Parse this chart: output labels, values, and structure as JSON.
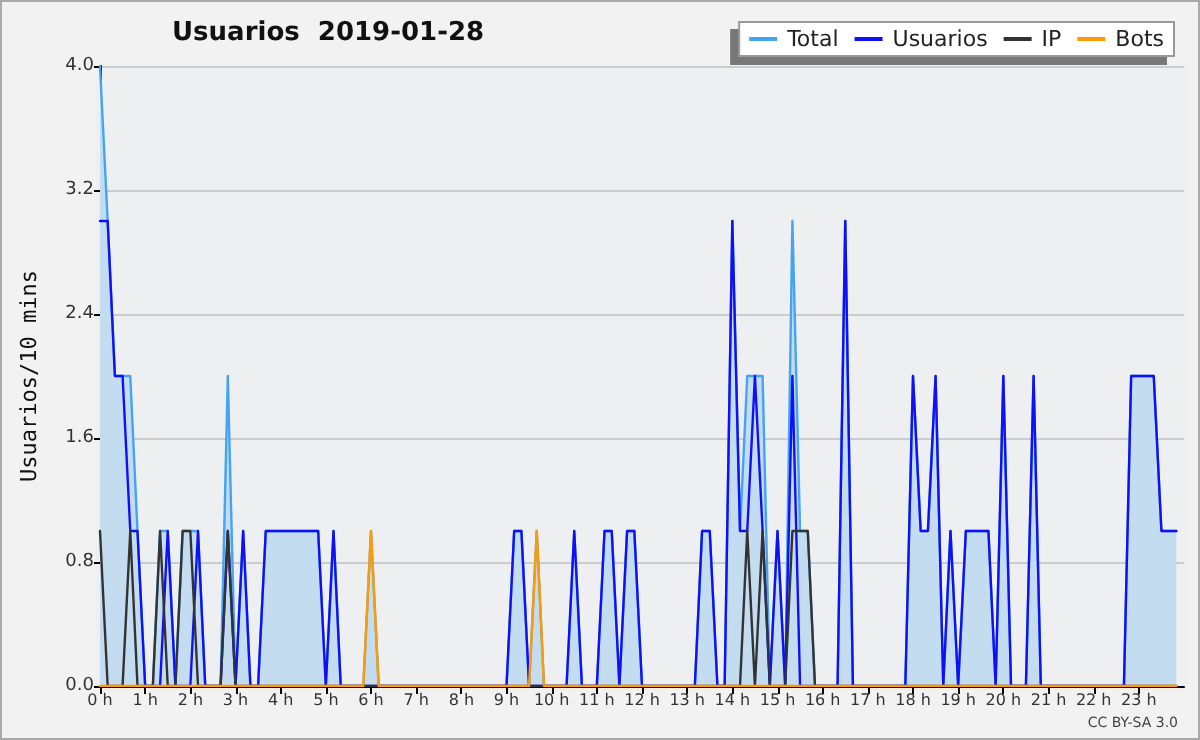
{
  "chart_data": {
    "type": "line",
    "title": "Usuarios  2019-01-28",
    "ylabel": "Usuarios/10 mins",
    "annotations": [
      "CC BY-SA 3.0"
    ],
    "x": [
      0,
      0.17,
      0.33,
      0.5,
      0.67,
      0.83,
      1,
      1.17,
      1.33,
      1.5,
      1.67,
      1.83,
      2,
      2.17,
      2.33,
      2.5,
      2.67,
      2.83,
      3,
      3.17,
      3.33,
      3.5,
      3.67,
      3.83,
      4,
      4.17,
      4.33,
      4.5,
      4.67,
      4.83,
      5,
      5.17,
      5.33,
      5.5,
      5.67,
      5.83,
      6,
      6.17,
      6.33,
      6.5,
      6.67,
      6.83,
      7,
      7.17,
      7.33,
      7.5,
      7.67,
      7.83,
      8,
      8.17,
      8.33,
      8.5,
      8.67,
      8.83,
      9,
      9.17,
      9.33,
      9.5,
      9.67,
      9.83,
      10,
      10.17,
      10.33,
      10.5,
      10.67,
      10.83,
      11,
      11.17,
      11.33,
      11.5,
      11.67,
      11.83,
      12,
      12.17,
      12.33,
      12.5,
      12.67,
      12.83,
      13,
      13.17,
      13.33,
      13.5,
      13.67,
      13.83,
      14,
      14.17,
      14.33,
      14.5,
      14.67,
      14.83,
      15,
      15.17,
      15.33,
      15.5,
      15.67,
      15.83,
      16,
      16.17,
      16.33,
      16.5,
      16.67,
      16.83,
      17,
      17.17,
      17.33,
      17.5,
      17.67,
      17.83,
      18,
      18.17,
      18.33,
      18.5,
      18.67,
      18.83,
      19,
      19.17,
      19.33,
      19.5,
      19.67,
      19.83,
      20,
      20.17,
      20.33,
      20.5,
      20.67,
      20.83,
      21,
      21.17,
      21.33,
      21.5,
      21.67,
      21.83,
      22,
      22.17,
      22.33,
      22.5,
      22.67,
      22.83,
      23,
      23.17,
      23.33,
      23.5,
      23.67,
      23.83
    ],
    "series": [
      {
        "name": "Total",
        "type": "area",
        "color": "#44a4f4",
        "values": [
          4,
          3,
          2,
          2,
          2,
          1,
          0,
          0,
          1,
          1,
          0,
          1,
          1,
          1,
          0,
          0,
          0,
          2,
          0,
          1,
          0,
          0,
          1,
          1,
          1,
          1,
          1,
          1,
          1,
          1,
          0,
          1,
          0,
          0,
          0,
          0,
          1,
          0,
          0,
          0,
          0,
          0,
          0,
          0,
          0,
          0,
          0,
          0,
          0,
          0,
          0,
          0,
          0,
          0,
          0,
          1,
          1,
          0,
          1,
          0,
          0,
          0,
          0,
          1,
          0,
          0,
          0,
          1,
          1,
          0,
          1,
          1,
          0,
          0,
          0,
          0,
          0,
          0,
          0,
          0,
          1,
          1,
          0,
          0,
          3,
          1,
          2,
          2,
          2,
          0,
          1,
          0,
          3,
          1,
          1,
          0,
          0,
          0,
          0,
          3,
          0,
          0,
          0,
          0,
          0,
          0,
          0,
          0,
          2,
          1,
          1,
          2,
          0,
          1,
          0,
          1,
          1,
          1,
          1,
          0,
          2,
          0,
          0,
          0,
          2,
          0,
          0,
          0,
          0,
          0,
          0,
          0,
          0,
          0,
          0,
          0,
          0,
          2,
          2,
          2,
          2,
          1,
          1,
          1
        ]
      },
      {
        "name": "Usuarios",
        "type": "line",
        "color": "#1010f8",
        "values": [
          3,
          3,
          2,
          2,
          1,
          1,
          0,
          0,
          0,
          1,
          0,
          0,
          0,
          1,
          0,
          0,
          0,
          1,
          0,
          1,
          0,
          0,
          1,
          1,
          1,
          1,
          1,
          1,
          1,
          1,
          0,
          1,
          0,
          0,
          0,
          0,
          0,
          0,
          0,
          0,
          0,
          0,
          0,
          0,
          0,
          0,
          0,
          0,
          0,
          0,
          0,
          0,
          0,
          0,
          0,
          1,
          1,
          0,
          0,
          0,
          0,
          0,
          0,
          1,
          0,
          0,
          0,
          1,
          1,
          0,
          1,
          1,
          0,
          0,
          0,
          0,
          0,
          0,
          0,
          0,
          1,
          1,
          0,
          0,
          3,
          1,
          1,
          2,
          1,
          0,
          1,
          0,
          2,
          0,
          0,
          0,
          0,
          0,
          0,
          3,
          0,
          0,
          0,
          0,
          0,
          0,
          0,
          0,
          2,
          1,
          1,
          2,
          0,
          1,
          0,
          1,
          1,
          1,
          1,
          0,
          2,
          0,
          0,
          0,
          2,
          0,
          0,
          0,
          0,
          0,
          0,
          0,
          0,
          0,
          0,
          0,
          0,
          2,
          2,
          2,
          2,
          1,
          1,
          1
        ]
      },
      {
        "name": "IP",
        "type": "line",
        "color": "#333333",
        "values": [
          1,
          0,
          0,
          0,
          1,
          0,
          0,
          0,
          1,
          0,
          0,
          1,
          1,
          0,
          0,
          0,
          0,
          1,
          0,
          0,
          0,
          0,
          0,
          0,
          0,
          0,
          0,
          0,
          0,
          0,
          0,
          0,
          0,
          0,
          0,
          0,
          0,
          0,
          0,
          0,
          0,
          0,
          0,
          0,
          0,
          0,
          0,
          0,
          0,
          0,
          0,
          0,
          0,
          0,
          0,
          0,
          0,
          0,
          0,
          0,
          0,
          0,
          0,
          0,
          0,
          0,
          0,
          0,
          0,
          0,
          0,
          0,
          0,
          0,
          0,
          0,
          0,
          0,
          0,
          0,
          0,
          0,
          0,
          0,
          0,
          0,
          1,
          0,
          1,
          0,
          0,
          0,
          1,
          1,
          1,
          0,
          0,
          0,
          0,
          0,
          0,
          0,
          0,
          0,
          0,
          0,
          0,
          0,
          0,
          0,
          0,
          0,
          0,
          0,
          0,
          0,
          0,
          0,
          0,
          0,
          0,
          0,
          0,
          0,
          0,
          0,
          0,
          0,
          0,
          0,
          0,
          0,
          0,
          0,
          0,
          0,
          0,
          0,
          0,
          0,
          0,
          0,
          0,
          0
        ]
      },
      {
        "name": "Bots",
        "type": "line",
        "color": "#ff9a00",
        "values": [
          0,
          0,
          0,
          0,
          0,
          0,
          0,
          0,
          0,
          0,
          0,
          0,
          0,
          0,
          0,
          0,
          0,
          0,
          0,
          0,
          0,
          0,
          0,
          0,
          0,
          0,
          0,
          0,
          0,
          0,
          0,
          0,
          0,
          0,
          0,
          0,
          1,
          0,
          0,
          0,
          0,
          0,
          0,
          0,
          0,
          0,
          0,
          0,
          0,
          0,
          0,
          0,
          0,
          0,
          0,
          0,
          0,
          0,
          1,
          0,
          0,
          0,
          0,
          0,
          0,
          0,
          0,
          0,
          0,
          0,
          0,
          0,
          0,
          0,
          0,
          0,
          0,
          0,
          0,
          0,
          0,
          0,
          0,
          0,
          0,
          0,
          0,
          0,
          0,
          0,
          0,
          0,
          0,
          0,
          0,
          0,
          0,
          0,
          0,
          0,
          0,
          0,
          0,
          0,
          0,
          0,
          0,
          0,
          0,
          0,
          0,
          0,
          0,
          0,
          0,
          0,
          0,
          0,
          0,
          0,
          0,
          0,
          0,
          0,
          0,
          0,
          0,
          0,
          0,
          0,
          0,
          0,
          0,
          0,
          0,
          0,
          0,
          0,
          0,
          0,
          0,
          0,
          0,
          0
        ]
      }
    ],
    "xlim": [
      0,
      24
    ],
    "xticks": [
      {
        "value": 0,
        "label": "0 h"
      },
      {
        "value": 1,
        "label": "1 h"
      },
      {
        "value": 2,
        "label": "2 h"
      },
      {
        "value": 3,
        "label": "3 h"
      },
      {
        "value": 4,
        "label": "4 h"
      },
      {
        "value": 5,
        "label": "5 h"
      },
      {
        "value": 6,
        "label": "6 h"
      },
      {
        "value": 7,
        "label": "7 h"
      },
      {
        "value": 8,
        "label": "8 h"
      },
      {
        "value": 9,
        "label": "9 h"
      },
      {
        "value": 10,
        "label": "10 h"
      },
      {
        "value": 11,
        "label": "11 h"
      },
      {
        "value": 12,
        "label": "12 h"
      },
      {
        "value": 13,
        "label": "13 h"
      },
      {
        "value": 14,
        "label": "14 h"
      },
      {
        "value": 15,
        "label": "15 h"
      },
      {
        "value": 16,
        "label": "16 h"
      },
      {
        "value": 17,
        "label": "17 h"
      },
      {
        "value": 18,
        "label": "18 h"
      },
      {
        "value": 19,
        "label": "19 h"
      },
      {
        "value": 20,
        "label": "20 h"
      },
      {
        "value": 21,
        "label": "21 h"
      },
      {
        "value": 22,
        "label": "22 h"
      },
      {
        "value": 23,
        "label": "23 h"
      }
    ],
    "ylim": [
      0,
      4
    ],
    "yticks": [
      {
        "value": 0,
        "label": "0.0"
      },
      {
        "value": 0.8,
        "label": "0.8"
      },
      {
        "value": 1.6,
        "label": "1.6"
      },
      {
        "value": 2.4,
        "label": "2.4"
      },
      {
        "value": 3.2,
        "label": "3.2"
      },
      {
        "value": 4,
        "label": "4.0"
      }
    ],
    "grid": "y",
    "legend": "top right",
    "marker": "none",
    "line_style": "solid"
  }
}
